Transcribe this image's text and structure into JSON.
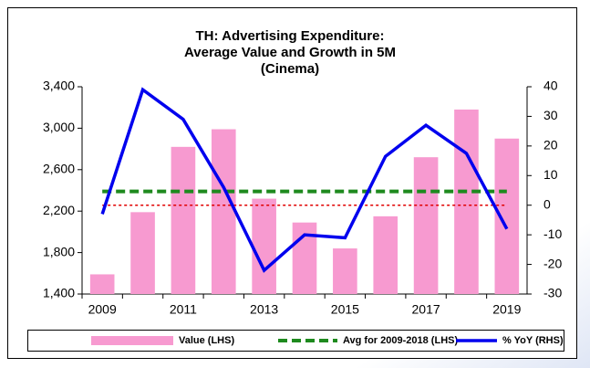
{
  "chart_data": {
    "type": "bar",
    "title": [
      "TH: Advertising Expenditure:",
      "Average Value and Growth in 5M",
      "(Cinema)"
    ],
    "categories": [
      "2009",
      null,
      "2011",
      null,
      "2013",
      null,
      "2015",
      null,
      "2017",
      null,
      "2019"
    ],
    "series": [
      {
        "name": "Value (LHS)",
        "type": "bar",
        "color": "#f79ad0",
        "values": [
          1590,
          2190,
          2820,
          2990,
          2320,
          2090,
          1840,
          2150,
          2720,
          3180,
          2900
        ]
      },
      {
        "name": "Avg for 2009-2018 (LHS)",
        "type": "line",
        "dash": true,
        "color": "#1e8a1e",
        "values": [
          2390,
          2390,
          2390,
          2390,
          2390,
          2390,
          2390,
          2390,
          2390,
          2390,
          2390
        ]
      },
      {
        "name": "% YoY (RHS)",
        "type": "line",
        "axis": "y2",
        "color": "#0000ee",
        "values": [
          -3,
          39,
          29,
          6,
          -22,
          -10,
          -11,
          16.5,
          27,
          17.5,
          -8
        ]
      }
    ],
    "reference_line": {
      "axis": "y2",
      "value": 0,
      "color": "#e00000"
    },
    "ylim": [
      1400,
      3400
    ],
    "yticks": [
      {
        "value": 1400,
        "label": "1,400"
      },
      {
        "value": 1800,
        "label": "1,800"
      },
      {
        "value": 2200,
        "label": "2,200"
      },
      {
        "value": 2600,
        "label": "2,600"
      },
      {
        "value": 3000,
        "label": "3,000"
      },
      {
        "value": 3400,
        "label": "3,400"
      }
    ],
    "y2lim": [
      -30,
      40
    ],
    "y2ticks": [
      -30,
      -20,
      -10,
      0,
      10,
      20,
      30,
      40
    ],
    "legend": "bottom"
  }
}
